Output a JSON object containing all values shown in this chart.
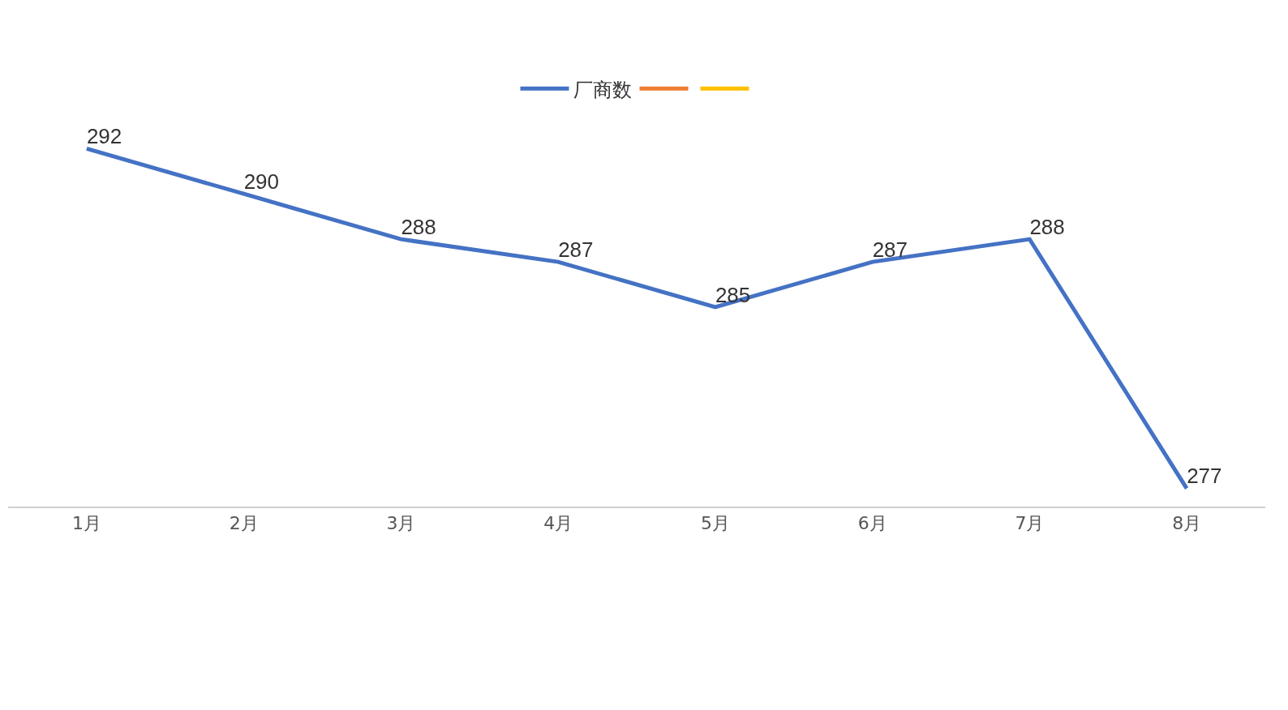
{
  "chart_data": {
    "type": "line",
    "categories": [
      "1月",
      "2月",
      "3月",
      "4月",
      "5月",
      "6月",
      "7月",
      "8月"
    ],
    "series": [
      {
        "name": "厂商数",
        "color": "#4472c4",
        "values": [
          292,
          290,
          288,
          287,
          285,
          287,
          288,
          277
        ]
      },
      {
        "color": "#ed7d31",
        "values": [
          null,
          null,
          null,
          null,
          null,
          null,
          null,
          null
        ]
      },
      {
        "color": "#ffc000",
        "values": [
          null,
          null,
          null,
          null,
          null,
          null,
          null,
          null
        ]
      }
    ],
    "data_labels": true,
    "grid": false,
    "legend": "top",
    "tick_labels": "x",
    "marker": "none",
    "line_style": "solid"
  }
}
